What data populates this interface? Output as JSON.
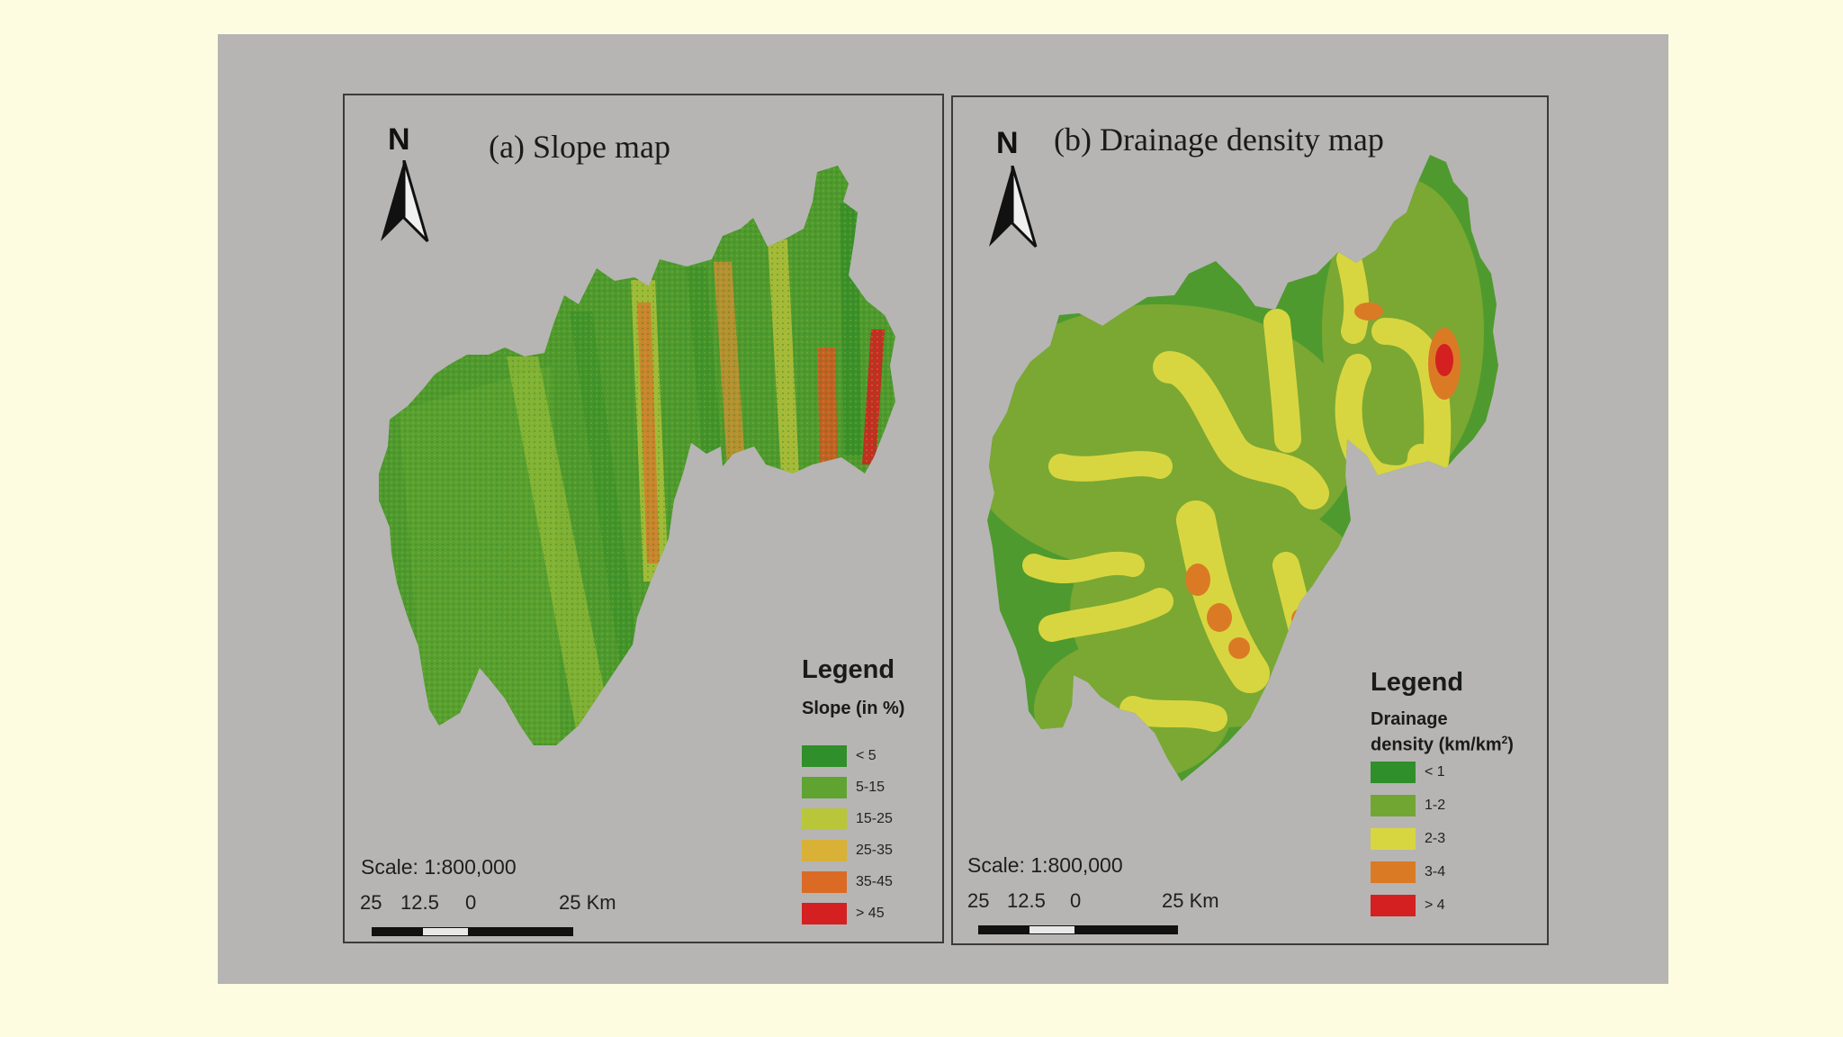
{
  "colors": {
    "page_background": "#fdfbe0",
    "slide_background": "#b6b5b3",
    "slope": [
      "#2f8f2a",
      "#5fa330",
      "#b9c63a",
      "#d8b136",
      "#db6a25",
      "#d42020"
    ],
    "drainage": [
      "#2f8f2a",
      "#72a632",
      "#d8d640",
      "#db7a25",
      "#d42020"
    ]
  },
  "maps": {
    "slope": {
      "title": "(a) Slope map",
      "north": "N",
      "legend_title": "Legend",
      "legend_subtitle": "Slope (in %)",
      "legend": [
        "< 5",
        "5-15",
        "15-25",
        "25-35",
        "35-45",
        "> 45"
      ],
      "scale": "Scale: 1:800,000",
      "scale_ticks": [
        "25",
        "12.5",
        "0",
        "25 Km"
      ]
    },
    "drainage": {
      "title": "(b) Drainage density map",
      "north": "N",
      "legend_title": "Legend",
      "legend_subtitle_line1": "Drainage",
      "legend_subtitle_line2": "density (km/km",
      "legend_subtitle_sup": "2",
      "legend_subtitle_end": ")",
      "legend": [
        "< 1",
        "1-2",
        "2-3",
        "3-4",
        "> 4"
      ],
      "scale": "Scale: 1:800,000",
      "scale_ticks": [
        "25",
        "12.5",
        "0",
        "25 Km"
      ]
    }
  }
}
